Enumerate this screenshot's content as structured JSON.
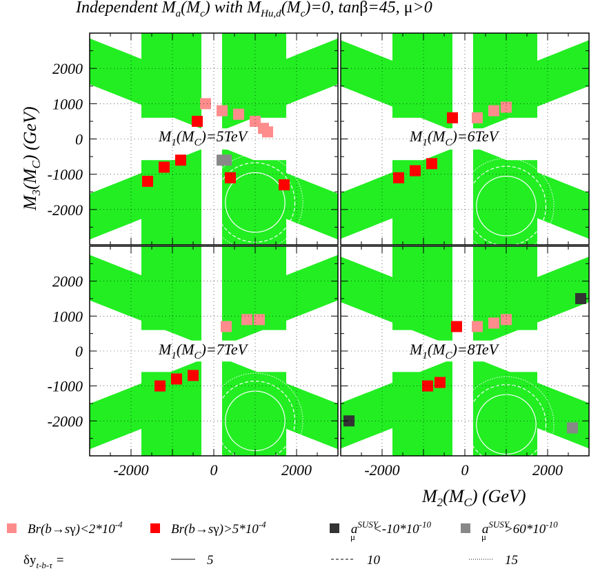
{
  "title": {
    "prefix": "Independent M",
    "a_sub": "a",
    "paren_open": "(M",
    "c_sub": "c",
    "mid": ") with M",
    "hud_sub": "Hu,d",
    "paren2_open": "(M",
    "c_sub2": "c",
    "tail": ")=0, tan",
    "beta": "β",
    "tail2": "=45, ",
    "mu": "μ",
    "tail3": ">0"
  },
  "colors": {
    "allowed": "#22ee22",
    "bsg_low": "#ff8c8c",
    "bsg_high": "#ff0000",
    "amu_low": "#333333",
    "amu_high": "#888888",
    "contour": "#ffffff"
  },
  "chart_data": {
    "type": "heatmap",
    "xlabel": "M2(MC) (GeV)",
    "ylabel": "M3(MC) (GeV)",
    "xlim": [
      -3000,
      3000
    ],
    "ylim": [
      -3000,
      3000
    ],
    "xticks": [
      "-2000",
      "0",
      "2000"
    ],
    "yticks": [
      "2000",
      "1000",
      "0",
      "-1000",
      "-2000"
    ],
    "grid": true,
    "panels": [
      {
        "label_main": "M",
        "label_sub1": "1",
        "label_mid": "(M",
        "label_sub2": "C",
        "label_tail": ")=5TeV",
        "M1_TeV": 5,
        "bsg_low": [
          [
            -200,
            1000
          ],
          [
            200,
            800
          ],
          [
            600,
            700
          ],
          [
            1000,
            500
          ],
          [
            1200,
            300
          ],
          [
            1300,
            200
          ]
        ],
        "bsg_high": [
          [
            -1600,
            -1200
          ],
          [
            -1200,
            -800
          ],
          [
            -800,
            -600
          ],
          [
            400,
            -1100
          ],
          [
            1700,
            -1300
          ],
          [
            -400,
            500
          ]
        ],
        "amu_high": [
          [
            200,
            -600
          ],
          [
            300,
            -600
          ]
        ],
        "amu_low": []
      },
      {
        "label_main": "M",
        "label_sub1": "1",
        "label_mid": "(M",
        "label_sub2": "C",
        "label_tail": ")=6TeV",
        "M1_TeV": 6,
        "bsg_low": [
          [
            300,
            600
          ],
          [
            700,
            800
          ],
          [
            1000,
            900
          ]
        ],
        "bsg_high": [
          [
            -1600,
            -1100
          ],
          [
            -1200,
            -900
          ],
          [
            -800,
            -700
          ],
          [
            -300,
            600
          ]
        ],
        "amu_high": [],
        "amu_low": []
      },
      {
        "label_main": "M",
        "label_sub1": "1",
        "label_mid": "(M",
        "label_sub2": "C",
        "label_tail": ")=7TeV",
        "M1_TeV": 7,
        "bsg_low": [
          [
            300,
            700
          ],
          [
            800,
            900
          ],
          [
            1100,
            900
          ]
        ],
        "bsg_high": [
          [
            -1300,
            -1000
          ],
          [
            -900,
            -800
          ],
          [
            -500,
            -700
          ]
        ],
        "amu_high": [],
        "amu_low": []
      },
      {
        "label_main": "M",
        "label_sub1": "1",
        "label_mid": "(M",
        "label_sub2": "C",
        "label_tail": ")=8TeV",
        "M1_TeV": 8,
        "bsg_low": [
          [
            300,
            700
          ],
          [
            700,
            800
          ],
          [
            1000,
            900
          ]
        ],
        "bsg_high": [
          [
            -900,
            -1000
          ],
          [
            -600,
            -900
          ],
          [
            -200,
            700
          ]
        ],
        "amu_high": [
          [
            2600,
            -2200
          ]
        ],
        "amu_low": [
          [
            -2800,
            -2000
          ],
          [
            2800,
            1500
          ]
        ]
      }
    ],
    "legend": {
      "items": [
        {
          "main": "Br(b",
          "arrow": "→",
          "mid": "s",
          "gamma": "γ",
          "tail": ")<2*10",
          "exp": "-4",
          "key": "bsg_low"
        },
        {
          "main": "Br(b",
          "arrow": "→",
          "mid": "s",
          "gamma": "γ",
          "tail": ")>5*10",
          "exp": "-4",
          "key": "bsg_high"
        },
        {
          "main": "a",
          "sub": "μ",
          "sup": "SUSY",
          "tail": "<-10*10",
          "exp": "-10",
          "key": "amu_low"
        },
        {
          "main": "a",
          "sub": "μ",
          "sup": "SUSY",
          "tail": ">60*10",
          "exp": "-10",
          "key": "amu_high"
        }
      ],
      "contour_label_main": "δy",
      "contour_label_sub": "t-b-τ",
      "contour_label_eq": " =",
      "contour_levels": [
        "5",
        "10",
        "15"
      ]
    }
  }
}
